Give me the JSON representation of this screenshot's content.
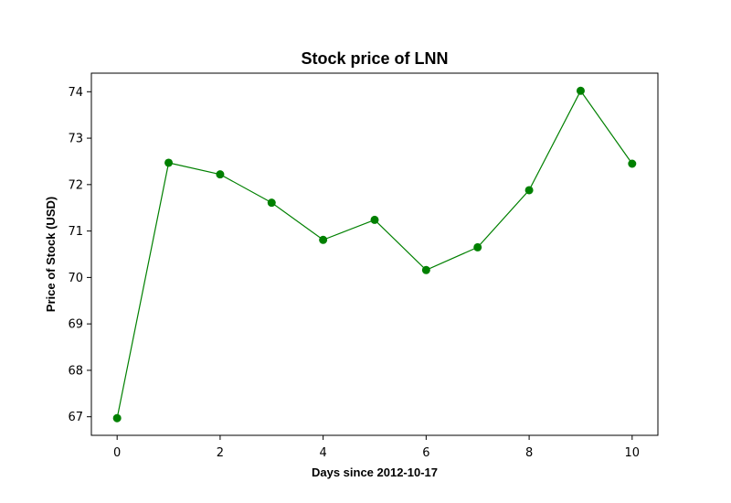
{
  "chart_data": {
    "type": "line",
    "title": "Stock price of LNN",
    "xlabel": "Days since 2012-10-17",
    "ylabel": "Price of Stock (USD)",
    "x": [
      0,
      1,
      2,
      3,
      4,
      5,
      6,
      7,
      8,
      9,
      10
    ],
    "series": [
      {
        "values": [
          66.97,
          72.47,
          72.22,
          71.61,
          70.81,
          71.24,
          70.16,
          70.65,
          71.88,
          74.02,
          72.45
        ]
      }
    ],
    "xlim": [
      -0.5,
      10.5
    ],
    "ylim": [
      66.6,
      74.4
    ],
    "xticks": [
      0,
      2,
      4,
      6,
      8,
      10
    ],
    "yticks": [
      67,
      68,
      69,
      70,
      71,
      72,
      73,
      74
    ],
    "grid": false,
    "line_color": "#008000",
    "marker": "circle"
  }
}
